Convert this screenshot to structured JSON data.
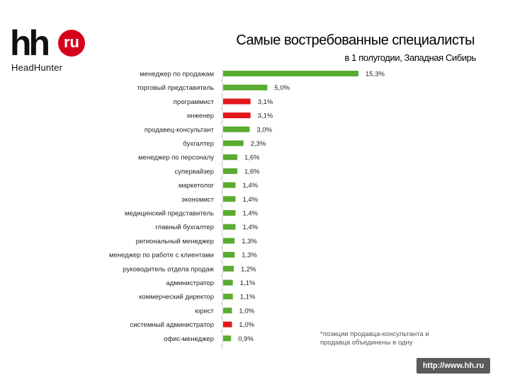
{
  "logo": {
    "mark": "hh",
    "badge": "ru",
    "brand": "HeadHunter"
  },
  "header": {
    "title": "Самые востребованные специалисты",
    "subtitle": "в 1 полугодии, Западная Сибирь"
  },
  "footnote": "*позиции продавца-консультанта и продавца объединены в одну",
  "url": "http://www.hh.ru",
  "colors": {
    "green": "#5aab31",
    "red": "#e2171b",
    "axis": "#cccccc",
    "label": "#222222"
  },
  "chart_data": {
    "type": "bar",
    "orientation": "horizontal",
    "title": "Самые востребованные специалисты",
    "subtitle": "в 1 полугодии, Западная Сибирь",
    "categories": [
      "менеджер по продажам",
      "торговый представитель",
      "программист",
      "инженер",
      "продавец-консультант",
      "бухгалтер",
      "менеджер по персоналу",
      "супервайзер",
      "маркетолог",
      "экономист",
      "медицинский представитель",
      "главный бухгалтер",
      "региональный менеджер",
      "менеджер по работе с клиентами",
      "руководитель отдела продаж",
      "администратор",
      "коммерческий директор",
      "юрист",
      "системный администратор",
      "офис-менеджер"
    ],
    "values": [
      15.3,
      5.0,
      3.1,
      3.1,
      3.0,
      2.3,
      1.6,
      1.6,
      1.4,
      1.4,
      1.4,
      1.4,
      1.3,
      1.3,
      1.2,
      1.1,
      1.1,
      1.0,
      1.0,
      0.9
    ],
    "value_labels": [
      "15,3%",
      "5,0%",
      "3,1%",
      "3,1%",
      "3,0%",
      "2,3%",
      "1,6%",
      "1,6%",
      "1,4%",
      "1,4%",
      "1,4%",
      "1,4%",
      "1,3%",
      "1,3%",
      "1,2%",
      "1,1%",
      "1,1%",
      "1,0%",
      "1,0%",
      "0,9%"
    ],
    "highlight": [
      false,
      false,
      true,
      true,
      false,
      false,
      false,
      false,
      false,
      false,
      false,
      false,
      false,
      false,
      false,
      false,
      false,
      false,
      true,
      false
    ],
    "xlim": [
      0,
      16
    ],
    "grid": false,
    "legend": false
  }
}
